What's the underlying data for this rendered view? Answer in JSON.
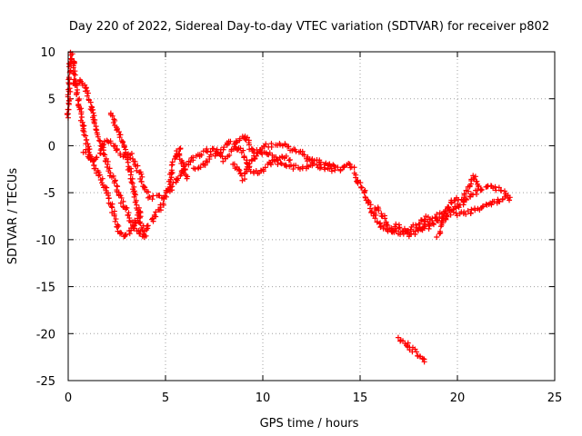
{
  "chart_data": {
    "type": "scatter",
    "title": "Day 220 of 2022, Sidereal Day-to-day VTEC variation (SDTVAR) for receiver p802",
    "xlabel": "GPS time / hours",
    "ylabel": "SDTVAR / TECUs",
    "xlim": [
      0,
      25
    ],
    "ylim": [
      -25,
      10
    ],
    "xticks": [
      "0",
      "5",
      "10",
      "15",
      "20",
      "25"
    ],
    "yticks": [
      "10",
      "5",
      "0",
      "-5",
      "-10",
      "-15",
      "-20",
      "-25"
    ],
    "grid": true,
    "marker": "plus",
    "color": "#ff0000",
    "series": [
      {
        "name": "track-1",
        "points": [
          [
            0.0,
            3.0
          ],
          [
            0.05,
            6.0
          ],
          [
            0.1,
            8.5
          ],
          [
            0.15,
            9.8
          ],
          [
            0.25,
            9.2
          ],
          [
            0.35,
            7.5
          ],
          [
            0.5,
            5.0
          ],
          [
            0.7,
            3.0
          ],
          [
            0.9,
            1.0
          ],
          [
            1.1,
            -1.0
          ],
          [
            1.4,
            -2.5
          ],
          [
            1.7,
            -3.5
          ],
          [
            2.0,
            -5.0
          ],
          [
            2.3,
            -7.0
          ],
          [
            2.6,
            -9.0
          ],
          [
            2.8,
            -9.6
          ],
          [
            3.1,
            -9.3
          ],
          [
            3.4,
            -8.5
          ],
          [
            3.7,
            -7.0
          ]
        ]
      },
      {
        "name": "track-2",
        "points": [
          [
            0.3,
            6.5
          ],
          [
            0.6,
            6.8
          ],
          [
            0.9,
            6.2
          ],
          [
            1.2,
            4.0
          ],
          [
            1.5,
            1.5
          ],
          [
            1.8,
            -0.5
          ],
          [
            2.1,
            -2.5
          ],
          [
            2.4,
            -4.0
          ],
          [
            2.7,
            -5.5
          ],
          [
            3.0,
            -7.0
          ],
          [
            3.3,
            -8.3
          ],
          [
            3.6,
            -9.3
          ],
          [
            3.9,
            -9.6
          ],
          [
            4.1,
            -8.5
          ]
        ]
      },
      {
        "name": "track-3",
        "points": [
          [
            0.8,
            -0.5
          ],
          [
            1.2,
            -1.5
          ],
          [
            1.6,
            -1.0
          ],
          [
            1.9,
            0.3
          ],
          [
            2.2,
            0.5
          ],
          [
            2.5,
            -0.5
          ],
          [
            2.8,
            -1.0
          ],
          [
            3.1,
            -0.7
          ],
          [
            3.4,
            -1.8
          ],
          [
            3.7,
            -3.0
          ],
          [
            3.9,
            -4.5
          ],
          [
            4.2,
            -5.5
          ],
          [
            4.6,
            -5.5
          ],
          [
            4.9,
            -5.5
          ]
        ]
      },
      {
        "name": "track-4",
        "points": [
          [
            2.2,
            3.5
          ],
          [
            2.5,
            2.0
          ],
          [
            2.7,
            0.8
          ],
          [
            2.9,
            -0.5
          ],
          [
            3.1,
            -2.0
          ],
          [
            3.3,
            -4.0
          ],
          [
            3.5,
            -6.0
          ],
          [
            3.7,
            -8.0
          ],
          [
            3.9,
            -9.5
          ]
        ]
      },
      {
        "name": "track-5",
        "points": [
          [
            4.3,
            -8.0
          ],
          [
            4.6,
            -7.0
          ],
          [
            4.9,
            -6.0
          ],
          [
            5.2,
            -4.0
          ],
          [
            5.4,
            -2.0
          ],
          [
            5.6,
            -0.5
          ],
          [
            5.7,
            -0.3
          ],
          [
            5.8,
            -1.5
          ],
          [
            6.1,
            -3.5
          ]
        ]
      },
      {
        "name": "track-6",
        "points": [
          [
            5.1,
            -5.0
          ],
          [
            5.5,
            -4.0
          ],
          [
            5.9,
            -2.5
          ],
          [
            6.3,
            -1.5
          ],
          [
            6.7,
            -1.0
          ],
          [
            7.2,
            -0.5
          ],
          [
            7.6,
            -0.5
          ],
          [
            8.0,
            -1.5
          ],
          [
            8.5,
            -0.2
          ],
          [
            8.9,
            -0.5
          ],
          [
            9.3,
            -2.5
          ],
          [
            9.7,
            -3.0
          ],
          [
            10.0,
            -2.5
          ],
          [
            10.3,
            -2.0
          ],
          [
            10.7,
            -1.5
          ],
          [
            11.0,
            -1.0
          ],
          [
            11.4,
            -1.5
          ]
        ]
      },
      {
        "name": "track-7",
        "points": [
          [
            6.5,
            -2.5
          ],
          [
            7.0,
            -2.0
          ],
          [
            7.4,
            -1.2
          ],
          [
            7.9,
            -0.5
          ],
          [
            8.3,
            0.3
          ],
          [
            8.7,
            0.5
          ],
          [
            9.1,
            1.0
          ],
          [
            9.3,
            0.0
          ],
          [
            9.6,
            -1.0
          ],
          [
            9.9,
            -0.2
          ],
          [
            10.3,
            0.0
          ],
          [
            10.8,
            0.0
          ],
          [
            11.2,
            0.0
          ],
          [
            11.6,
            -0.5
          ],
          [
            12.0,
            -0.8
          ],
          [
            12.4,
            -1.5
          ],
          [
            12.8,
            -1.5
          ],
          [
            13.2,
            -2.0
          ],
          [
            13.6,
            -2.2
          ],
          [
            14.0,
            -2.5
          ],
          [
            14.4,
            -2.0
          ],
          [
            14.7,
            -2.3
          ]
        ]
      },
      {
        "name": "track-8",
        "points": [
          [
            8.4,
            -2.0
          ],
          [
            8.7,
            -2.5
          ],
          [
            9.0,
            -3.5
          ],
          [
            9.3,
            -2.0
          ],
          [
            9.6,
            -1.2
          ],
          [
            10.0,
            -0.8
          ],
          [
            10.4,
            -1.0
          ],
          [
            10.9,
            -2.0
          ],
          [
            11.3,
            -2.2
          ],
          [
            11.7,
            -2.3
          ],
          [
            12.1,
            -2.3
          ],
          [
            12.5,
            -2.0
          ],
          [
            12.9,
            -2.2
          ],
          [
            13.3,
            -2.5
          ],
          [
            13.7,
            -2.6
          ]
        ]
      },
      {
        "name": "track-9",
        "points": [
          [
            14.7,
            -3.0
          ],
          [
            14.9,
            -3.8
          ],
          [
            15.1,
            -4.5
          ],
          [
            15.3,
            -5.5
          ],
          [
            15.5,
            -6.5
          ],
          [
            15.7,
            -7.5
          ],
          [
            15.9,
            -8.0
          ],
          [
            16.1,
            -8.5
          ],
          [
            16.4,
            -8.8
          ],
          [
            16.7,
            -9.2
          ],
          [
            17.0,
            -9.3
          ],
          [
            17.3,
            -9.0
          ],
          [
            17.6,
            -8.8
          ],
          [
            17.9,
            -8.5
          ],
          [
            18.2,
            -8.0
          ],
          [
            18.5,
            -7.6
          ]
        ]
      },
      {
        "name": "track-10",
        "points": [
          [
            15.8,
            -6.5
          ],
          [
            16.0,
            -7.0
          ],
          [
            16.3,
            -8.0
          ],
          [
            16.6,
            -9.0
          ],
          [
            16.9,
            -8.5
          ],
          [
            17.2,
            -9.2
          ],
          [
            17.5,
            -9.6
          ],
          [
            17.8,
            -9.2
          ],
          [
            18.1,
            -8.8
          ],
          [
            18.4,
            -8.3
          ],
          [
            18.7,
            -8.0
          ],
          [
            19.0,
            -7.5
          ],
          [
            19.3,
            -7.0
          ],
          [
            19.6,
            -6.8
          ],
          [
            19.9,
            -6.5
          ],
          [
            20.2,
            -6.3
          ],
          [
            20.6,
            -5.5
          ],
          [
            21.0,
            -5.0
          ],
          [
            21.4,
            -4.5
          ],
          [
            21.8,
            -4.2
          ],
          [
            22.2,
            -4.8
          ],
          [
            22.6,
            -5.3
          ]
        ]
      },
      {
        "name": "track-11",
        "points": [
          [
            18.0,
            -9.0
          ],
          [
            18.4,
            -8.8
          ],
          [
            18.8,
            -8.3
          ],
          [
            19.2,
            -7.8
          ],
          [
            19.6,
            -7.2
          ],
          [
            19.9,
            -7.3
          ],
          [
            20.3,
            -7.2
          ],
          [
            20.7,
            -7.0
          ],
          [
            21.1,
            -6.6
          ],
          [
            21.5,
            -6.3
          ],
          [
            21.9,
            -6.0
          ],
          [
            22.3,
            -5.8
          ],
          [
            22.7,
            -5.5
          ]
        ]
      },
      {
        "name": "track-12",
        "points": [
          [
            19.0,
            -9.5
          ],
          [
            19.3,
            -8.0
          ],
          [
            19.5,
            -6.5
          ],
          [
            19.7,
            -6.0
          ],
          [
            19.9,
            -5.7
          ],
          [
            20.2,
            -5.8
          ],
          [
            20.5,
            -4.8
          ],
          [
            20.7,
            -3.8
          ],
          [
            20.9,
            -3.3
          ],
          [
            21.1,
            -4.3
          ]
        ]
      },
      {
        "name": "track-13",
        "points": [
          [
            17.0,
            -20.5
          ],
          [
            17.3,
            -20.9
          ],
          [
            17.6,
            -21.5
          ],
          [
            17.9,
            -22.0
          ],
          [
            18.1,
            -22.5
          ],
          [
            18.3,
            -23.0
          ]
        ]
      }
    ]
  }
}
